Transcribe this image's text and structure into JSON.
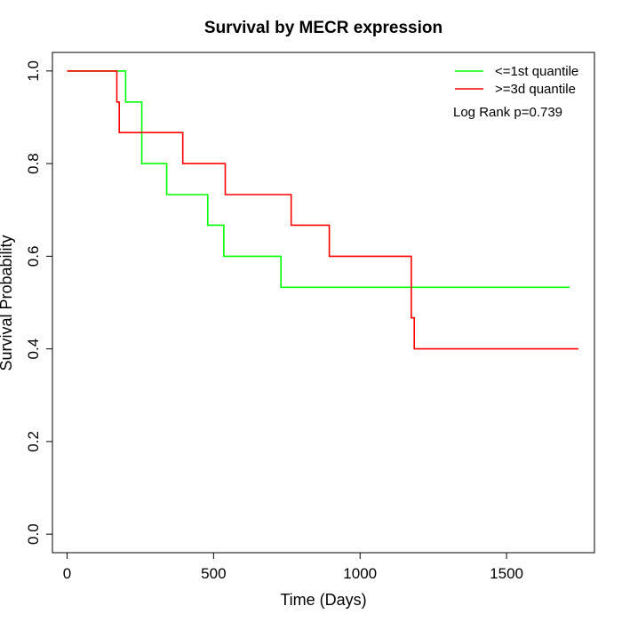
{
  "chart_data": {
    "type": "line",
    "title": "Survival by MECR expression",
    "xlabel": "Time (Days)",
    "ylabel": "Survival Probability",
    "xlim": [
      -50,
      1800
    ],
    "ylim": [
      -0.04,
      1.04
    ],
    "x_ticks": [
      0,
      500,
      1000,
      1500
    ],
    "y_ticks": [
      0.0,
      0.2,
      0.4,
      0.6,
      0.8,
      1.0
    ],
    "y_tick_labels": [
      "0.0",
      "0.2",
      "0.4",
      "0.6",
      "0.8",
      "1.0"
    ],
    "grid": false,
    "legend_position": "top-right",
    "annotation": "Log Rank p=0.739",
    "series": [
      {
        "name": "<=1st quantile",
        "color": "#00ff00",
        "step_points": [
          [
            0,
            1.0
          ],
          [
            200,
            1.0
          ],
          [
            200,
            0.933
          ],
          [
            255,
            0.933
          ],
          [
            255,
            0.8
          ],
          [
            340,
            0.8
          ],
          [
            340,
            0.733
          ],
          [
            480,
            0.733
          ],
          [
            480,
            0.667
          ],
          [
            535,
            0.667
          ],
          [
            535,
            0.6
          ],
          [
            730,
            0.6
          ],
          [
            730,
            0.533
          ],
          [
            1715,
            0.533
          ]
        ]
      },
      {
        "name": ">=3d quantile",
        "color": "#ff0000",
        "step_points": [
          [
            0,
            1.0
          ],
          [
            170,
            1.0
          ],
          [
            170,
            0.933
          ],
          [
            178,
            0.933
          ],
          [
            178,
            0.867
          ],
          [
            395,
            0.867
          ],
          [
            395,
            0.8
          ],
          [
            540,
            0.8
          ],
          [
            540,
            0.733
          ],
          [
            765,
            0.733
          ],
          [
            765,
            0.667
          ],
          [
            895,
            0.667
          ],
          [
            895,
            0.6
          ],
          [
            1175,
            0.6
          ],
          [
            1175,
            0.467
          ],
          [
            1185,
            0.467
          ],
          [
            1185,
            0.4
          ],
          [
            1745,
            0.4
          ]
        ]
      }
    ]
  }
}
